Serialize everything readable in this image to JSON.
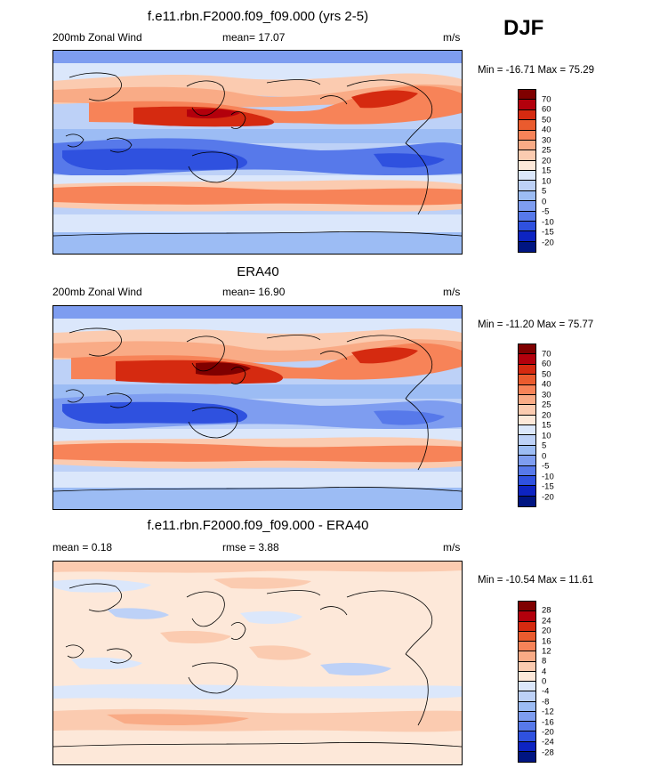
{
  "season": "DJF",
  "panels": [
    {
      "id": "model",
      "title": "f.e11.rbn.F2000.f09_f09.000 (yrs 2-5)",
      "left_label": "200mb Zonal Wind",
      "center_label": "mean=  17.07",
      "right_label": "m/s",
      "minmax": "Min = -16.71 Max =  75.29",
      "levels": [
        "70",
        "60",
        "50",
        "40",
        "30",
        "25",
        "20",
        "15",
        "10",
        "5",
        "0",
        "-5",
        "-10",
        "-15",
        "-20"
      ],
      "colors": [
        "#7f0000",
        "#b3000c",
        "#d52a10",
        "#ea5b2e",
        "#f78358",
        "#f9ab86",
        "#fbcbb0",
        "#fde8d9",
        "#dbe7fb",
        "#bdd1f7",
        "#9cbcf4",
        "#7e9df0",
        "#5779ea",
        "#2f51df",
        "#0d24c2",
        "#001582"
      ]
    },
    {
      "id": "obs",
      "title": "ERA40",
      "left_label": "200mb Zonal Wind",
      "center_label": "mean=  16.90",
      "right_label": "m/s",
      "minmax": "Min = -11.20 Max =  75.77",
      "levels": [
        "70",
        "60",
        "50",
        "40",
        "30",
        "25",
        "20",
        "15",
        "10",
        "5",
        "0",
        "-5",
        "-10",
        "-15",
        "-20"
      ],
      "colors": [
        "#7f0000",
        "#b3000c",
        "#d52a10",
        "#ea5b2e",
        "#f78358",
        "#f9ab86",
        "#fbcbb0",
        "#fde8d9",
        "#dbe7fb",
        "#bdd1f7",
        "#9cbcf4",
        "#7e9df0",
        "#5779ea",
        "#2f51df",
        "#0d24c2",
        "#001582"
      ]
    },
    {
      "id": "diff",
      "title": "f.e11.rbn.F2000.f09_f09.000 - ERA40",
      "left_label": "mean =   0.18",
      "center_label": "rmse =   3.88",
      "right_label": "m/s",
      "minmax": "Min = -10.54 Max =  11.61",
      "levels": [
        "28",
        "24",
        "20",
        "16",
        "12",
        "8",
        "4",
        "0",
        "-4",
        "-8",
        "-12",
        "-16",
        "-20",
        "-24",
        "-28"
      ],
      "colors": [
        "#7f0000",
        "#b3000c",
        "#d52a10",
        "#ea5b2e",
        "#f78358",
        "#f9ab86",
        "#fbcbb0",
        "#fde8d9",
        "#dbe7fb",
        "#bdd1f7",
        "#9cbcf4",
        "#7e9df0",
        "#5779ea",
        "#2f51df",
        "#0d24c2",
        "#001582"
      ]
    }
  ],
  "chart_data": [
    {
      "type": "heatmap",
      "title": "f.e11.rbn.F2000.f09_f09.000 (yrs 2-5)",
      "variable": "200mb Zonal Wind",
      "units": "m/s",
      "mean": 17.07,
      "min": -16.71,
      "max": 75.29,
      "colorbar_levels": [
        70,
        60,
        50,
        40,
        30,
        25,
        20,
        15,
        10,
        5,
        0,
        -5,
        -10,
        -15,
        -20
      ]
    },
    {
      "type": "heatmap",
      "title": "ERA40",
      "variable": "200mb Zonal Wind",
      "units": "m/s",
      "mean": 16.9,
      "min": -11.2,
      "max": 75.77,
      "colorbar_levels": [
        70,
        60,
        50,
        40,
        30,
        25,
        20,
        15,
        10,
        5,
        0,
        -5,
        -10,
        -15,
        -20
      ]
    },
    {
      "type": "heatmap",
      "title": "f.e11.rbn.F2000.f09_f09.000 - ERA40",
      "units": "m/s",
      "mean": 0.18,
      "rmse": 3.88,
      "min": -10.54,
      "max": 11.61,
      "colorbar_levels": [
        28,
        24,
        20,
        16,
        12,
        8,
        4,
        0,
        -4,
        -8,
        -12,
        -16,
        -20,
        -24,
        -28
      ]
    }
  ]
}
